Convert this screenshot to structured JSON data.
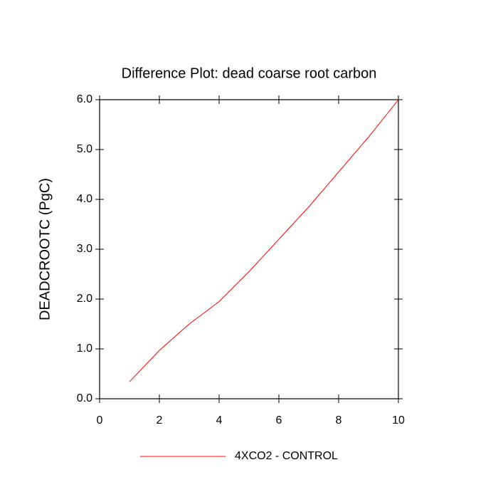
{
  "chart_data": {
    "type": "line",
    "title": "Difference Plot: dead coarse root carbon",
    "y_label": "DEADCROOTC  (PgC)",
    "x": [
      1,
      2,
      3,
      4,
      5,
      6,
      7,
      8,
      9,
      10
    ],
    "series": [
      {
        "name": "4XCO2 - CONTROL",
        "color": "#ff0000",
        "values": [
          0.34,
          0.97,
          1.5,
          1.95,
          2.55,
          3.2,
          3.85,
          4.55,
          5.25,
          6.0
        ]
      }
    ],
    "xlim": [
      0,
      10
    ],
    "xticks": [
      0,
      2,
      4,
      6,
      8,
      10
    ],
    "ylim": [
      0,
      6
    ],
    "yticks": [
      {
        "value": 0,
        "label": "0.0"
      },
      {
        "value": 1,
        "label": "1.0"
      },
      {
        "value": 2,
        "label": "2.0"
      },
      {
        "value": 3,
        "label": "3.0"
      },
      {
        "value": 4,
        "label": "4.0"
      },
      {
        "value": 5,
        "label": "5.0"
      },
      {
        "value": 6,
        "label": "6.0"
      }
    ],
    "grid": false
  }
}
